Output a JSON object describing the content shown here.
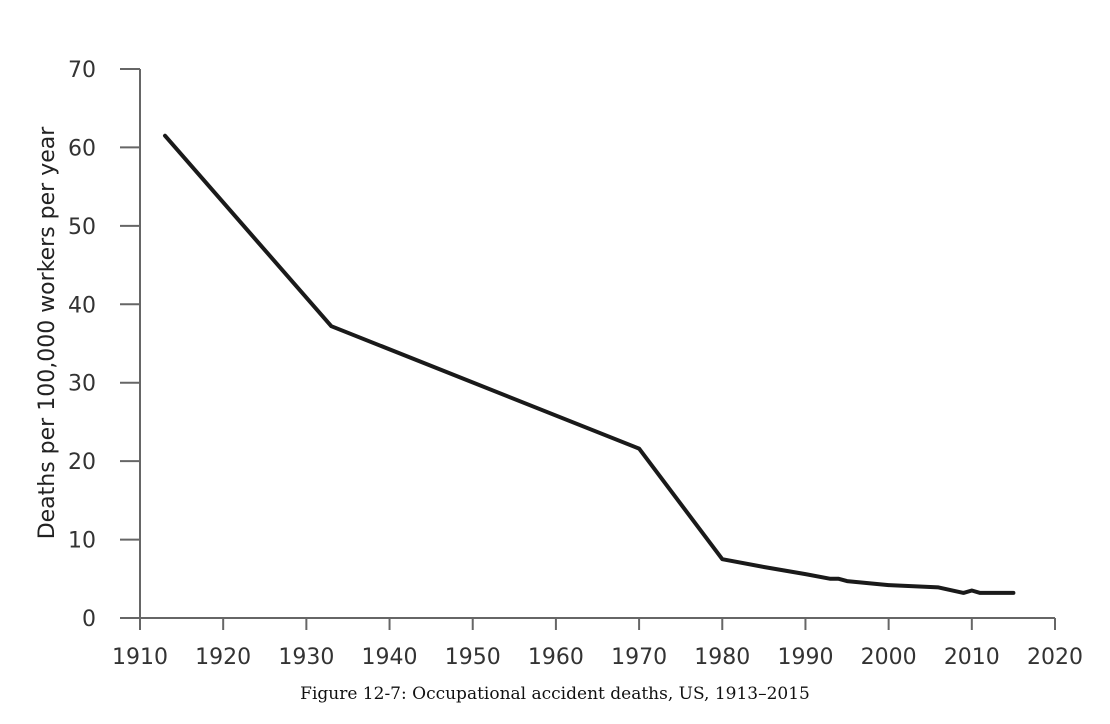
{
  "chart_data": {
    "type": "line",
    "caption": "Figure 12-7: Occupational accident deaths, US, 1913–2015",
    "ylabel": "Deaths per 100,000 workers per year",
    "xlabel": "",
    "xlim": [
      1910,
      2020
    ],
    "ylim": [
      0,
      70
    ],
    "x_ticks": [
      "1910",
      "1920",
      "1930",
      "1940",
      "1950",
      "1960",
      "1970",
      "1980",
      "1990",
      "2000",
      "2010",
      "2020"
    ],
    "y_ticks": [
      "0",
      "10",
      "20",
      "30",
      "40",
      "50",
      "60",
      "70"
    ],
    "grid": false,
    "series": [
      {
        "color": "#1a1a1a",
        "x": [
          1913,
          1933,
          1970,
          1980,
          1985,
          1990,
          1993,
          1994,
          1995,
          2000,
          2006,
          2009,
          2010,
          2011,
          2015
        ],
        "values": [
          61.5,
          37.2,
          21.6,
          7.5,
          6.5,
          5.6,
          5.0,
          5.0,
          4.7,
          4.2,
          3.9,
          3.2,
          3.5,
          3.2,
          3.2
        ]
      }
    ]
  }
}
